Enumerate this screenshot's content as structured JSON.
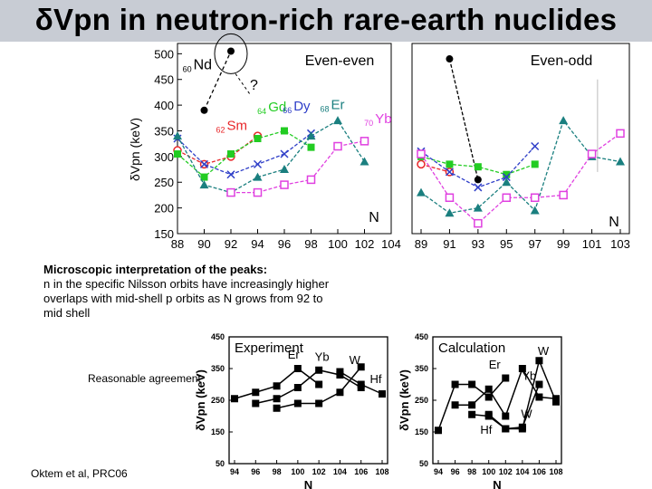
{
  "title": "δVpn in neutron-rich rare-earth nuclides",
  "notes": {
    "micro_heading": "Microscopic interpretation of the peaks:",
    "micro_body": "n in the specific Nilsson orbits have increasingly higher overlaps with mid-shell p orbits as N grows from 92 to mid shell",
    "agreement": "Reasonable agreement",
    "citation": "Oktem et al, PRC06"
  },
  "colors": {
    "Nd": "#000000",
    "Sm": "#e8272a",
    "Gd": "#22cc22",
    "Dy": "#2e3ec8",
    "Er": "#1a7f7f",
    "Yb": "#e040e0",
    "gray": "#999999"
  },
  "chart_data": [
    {
      "type": "line",
      "title": "Even-even",
      "ylabel": "δVpn (keV)",
      "xlabel": "N",
      "xlim": [
        88,
        104
      ],
      "ylim": [
        150,
        520
      ],
      "xticks": [
        "88",
        "90",
        "92",
        "94",
        "96",
        "98",
        "100",
        "102",
        "104"
      ],
      "yticks": [
        "150",
        "200",
        "250",
        "300",
        "350",
        "400",
        "450",
        "500"
      ],
      "annotations": {
        "question": "?"
      },
      "series": [
        {
          "name": "Nd",
          "mass": "60",
          "color": "#000000",
          "marker": "circle-filled",
          "x": [
            90,
            92
          ],
          "y": [
            390,
            505
          ]
        },
        {
          "name": "Sm",
          "mass": "62",
          "color": "#e8272a",
          "marker": "circle-open",
          "x": [
            88,
            90,
            92,
            94
          ],
          "y": [
            312,
            285,
            300,
            340
          ]
        },
        {
          "name": "Gd",
          "mass": "64",
          "color": "#22cc22",
          "marker": "square-filled",
          "x": [
            88,
            90,
            92,
            94,
            96,
            98
          ],
          "y": [
            305,
            260,
            305,
            335,
            350,
            318
          ]
        },
        {
          "name": "Dy",
          "mass": "66",
          "color": "#2e3ec8",
          "marker": "x",
          "x": [
            88,
            90,
            92,
            94,
            96,
            98
          ],
          "y": [
            335,
            285,
            265,
            285,
            305,
            345
          ]
        },
        {
          "name": "Er",
          "mass": "68",
          "color": "#1a7f7f",
          "marker": "triangle",
          "x": [
            88,
            90,
            92,
            94,
            96,
            98,
            100,
            102
          ],
          "y": [
            340,
            245,
            230,
            260,
            275,
            340,
            370,
            290
          ]
        },
        {
          "name": "Yb",
          "mass": "70",
          "color": "#e040e0",
          "marker": "square-open",
          "x": [
            92,
            94,
            96,
            98,
            100,
            102
          ],
          "y": [
            230,
            230,
            245,
            255,
            320,
            330
          ]
        }
      ]
    },
    {
      "type": "line",
      "title": "Even-odd",
      "xlabel": "N",
      "xlim": [
        89,
        103
      ],
      "ylim": [
        150,
        520
      ],
      "xticks": [
        "89",
        "91",
        "93",
        "95",
        "97",
        "99",
        "101",
        "103"
      ],
      "series": [
        {
          "name": "Nd",
          "color": "#000000",
          "marker": "circle-filled",
          "x": [
            91,
            93
          ],
          "y": [
            490,
            255
          ]
        },
        {
          "name": "Sm",
          "color": "#e8272a",
          "marker": "circle-open",
          "x": [
            89,
            91
          ],
          "y": [
            285,
            270
          ]
        },
        {
          "name": "Gd",
          "color": "#22cc22",
          "marker": "square-filled",
          "x": [
            89,
            91,
            93,
            95,
            97
          ],
          "y": [
            300,
            285,
            280,
            265,
            285
          ]
        },
        {
          "name": "Dy",
          "color": "#2e3ec8",
          "marker": "x",
          "x": [
            89,
            91,
            93,
            95,
            97
          ],
          "y": [
            310,
            270,
            240,
            260,
            320
          ]
        },
        {
          "name": "Er",
          "color": "#1a7f7f",
          "marker": "triangle",
          "x": [
            89,
            91,
            93,
            95,
            97,
            99,
            101,
            103
          ],
          "y": [
            230,
            190,
            200,
            250,
            195,
            370,
            300,
            290
          ]
        },
        {
          "name": "Yb",
          "color": "#e040e0",
          "marker": "square-open",
          "x": [
            89,
            91,
            93,
            95,
            97,
            99,
            101,
            103
          ],
          "y": [
            305,
            220,
            170,
            220,
            220,
            225,
            305,
            345
          ]
        }
      ]
    },
    {
      "type": "line",
      "title": "Experiment",
      "ylabel": "δVpn (keV)",
      "xlabel": "N",
      "xlim": [
        94,
        108
      ],
      "ylim": [
        50,
        450
      ],
      "xticks": [
        "94",
        "96",
        "98",
        "100",
        "102",
        "104",
        "106",
        "108"
      ],
      "yticks": [
        "50",
        "150",
        "250",
        "350",
        "450"
      ],
      "series": [
        {
          "name": "Er",
          "x": [
            94,
            96,
            98,
            100,
            102
          ],
          "y": [
            255,
            275,
            295,
            350,
            300
          ]
        },
        {
          "name": "Yb",
          "x": [
            96,
            98,
            100,
            102,
            104,
            106
          ],
          "y": [
            240,
            255,
            290,
            345,
            330,
            290
          ]
        },
        {
          "name": "W",
          "x": [
            98,
            100,
            102,
            104,
            106
          ],
          "y": [
            225,
            240,
            240,
            275,
            355
          ]
        },
        {
          "name": "Hf",
          "x": [
            104,
            106,
            108
          ],
          "y": [
            340,
            300,
            270
          ]
        }
      ]
    },
    {
      "type": "line",
      "title": "Calculation",
      "ylabel": "δVpn (keV)",
      "xlabel": "N",
      "xlim": [
        94,
        108
      ],
      "ylim": [
        50,
        450
      ],
      "xticks": [
        "94",
        "96",
        "98",
        "100",
        "102",
        "104",
        "106",
        "108"
      ],
      "yticks": [
        "50",
        "150",
        "250",
        "350",
        "450"
      ],
      "series": [
        {
          "name": "Er",
          "x": [
            94,
            96,
            98,
            100,
            102
          ],
          "y": [
            155,
            300,
            300,
            260,
            320
          ]
        },
        {
          "name": "Yb",
          "x": [
            96,
            98,
            100,
            102,
            104,
            106,
            108
          ],
          "y": [
            235,
            235,
            285,
            200,
            350,
            260,
            255
          ]
        },
        {
          "name": "W",
          "x": [
            100,
            102,
            104,
            106,
            108
          ],
          "y": [
            205,
            160,
            160,
            375,
            245
          ]
        },
        {
          "name": "Hf",
          "x": [
            98,
            100,
            102,
            104,
            106
          ],
          "y": [
            205,
            200,
            160,
            165,
            300
          ]
        }
      ]
    }
  ]
}
